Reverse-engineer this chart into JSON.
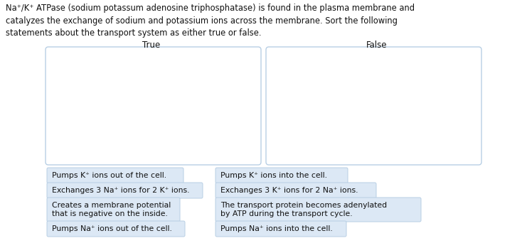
{
  "title_text": "Na⁺/K⁺ ATPase (sodium potassum adenosine triphosphatase) is found in the plasma membrane and\ncatalyzes the exchange of sodium and potassium ions across the membrane. Sort the following\nstatements about the transport system as either true or false.",
  "true_label": "True",
  "false_label": "False",
  "box_color": "#ffffff",
  "box_edge_color": "#b8cfe4",
  "bg_color": "#ffffff",
  "pill_bg": "#dce8f5",
  "pill_edge": "#b8cfe4",
  "items": [
    {
      "col1": "Pumps K⁺ ions out of the cell.",
      "col2": "Pumps K⁺ ions into the cell."
    },
    {
      "col1": "Exchanges 3 Na⁺ ions for 2 K⁺ ions.",
      "col2": "Exchanges 3 K⁺ ions for 2 Na⁺ ions."
    },
    {
      "col1": "Creates a membrane potential\nthat is negative on the inside.",
      "col2": "The transport protein becomes adenylated\nby ATP during the transport cycle."
    },
    {
      "col1": "Pumps Na⁺ ions out of the cell.",
      "col2": "Pumps Na⁺ ions into the cell."
    }
  ],
  "font_size_title": 8.3,
  "font_size_labels": 8.5,
  "font_size_items": 7.8,
  "fig_w": 7.41,
  "fig_h": 3.49,
  "dpi": 100
}
